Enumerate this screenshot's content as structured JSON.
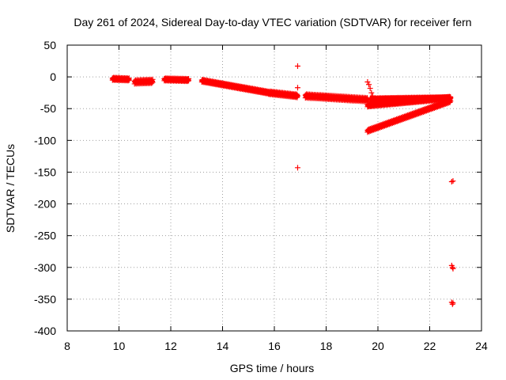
{
  "chart_data": {
    "type": "scatter",
    "title": "Day 261 of 2024, Sidereal Day-to-day VTEC variation (SDTVAR) for receiver fern",
    "xlabel": "GPS time / hours",
    "ylabel": "SDTVAR / TECUs",
    "xlim": [
      8,
      24
    ],
    "ylim": [
      -400,
      50
    ],
    "xticks": [
      8,
      10,
      12,
      14,
      16,
      18,
      20,
      22,
      24
    ],
    "yticks": [
      50,
      0,
      -50,
      -100,
      -150,
      -200,
      -250,
      -300,
      -350,
      -400
    ],
    "grid": true,
    "marker": "+",
    "series": [
      {
        "name": "SDTVAR",
        "color": "#ff0000",
        "segments": [
          {
            "x_start": 9.75,
            "x_end": 10.4,
            "y_start": -3,
            "y_end": -4,
            "spread": 4
          },
          {
            "x_start": 10.6,
            "x_end": 11.3,
            "y_start": -8,
            "y_end": -7,
            "spread": 6
          },
          {
            "x_start": 11.75,
            "x_end": 12.7,
            "y_start": -4,
            "y_end": -5,
            "spread": 4
          },
          {
            "x_start": 13.2,
            "x_end": 15.8,
            "y_start": -6,
            "y_end": -25,
            "spread": 4
          },
          {
            "x_start": 15.8,
            "x_end": 16.9,
            "y_start": -25,
            "y_end": -30,
            "spread": 5
          },
          {
            "x_start": 17.2,
            "x_end": 19.6,
            "y_start": -30,
            "y_end": -36,
            "spread": 6
          },
          {
            "x_start": 19.6,
            "x_end": 22.8,
            "y_start": -45,
            "y_end": -33,
            "spread": 4
          },
          {
            "x_start": 19.7,
            "x_end": 22.8,
            "y_start": -35,
            "y_end": -33,
            "spread": 3
          },
          {
            "x_start": 19.6,
            "x_end": 22.8,
            "y_start": -85,
            "y_end": -38,
            "spread": 4
          }
        ],
        "points": [
          {
            "x": 16.9,
            "y": 17
          },
          {
            "x": 16.9,
            "y": -17
          },
          {
            "x": 16.9,
            "y": -143
          },
          {
            "x": 19.6,
            "y": -8
          },
          {
            "x": 19.65,
            "y": -12
          },
          {
            "x": 19.7,
            "y": -18
          },
          {
            "x": 19.75,
            "y": -25
          },
          {
            "x": 19.8,
            "y": -30
          },
          {
            "x": 22.85,
            "y": -165
          },
          {
            "x": 22.9,
            "y": -164
          },
          {
            "x": 22.85,
            "y": -297
          },
          {
            "x": 22.88,
            "y": -300
          },
          {
            "x": 22.9,
            "y": -302
          },
          {
            "x": 22.85,
            "y": -355
          },
          {
            "x": 22.88,
            "y": -358
          },
          {
            "x": 22.9,
            "y": -356
          }
        ]
      }
    ]
  }
}
